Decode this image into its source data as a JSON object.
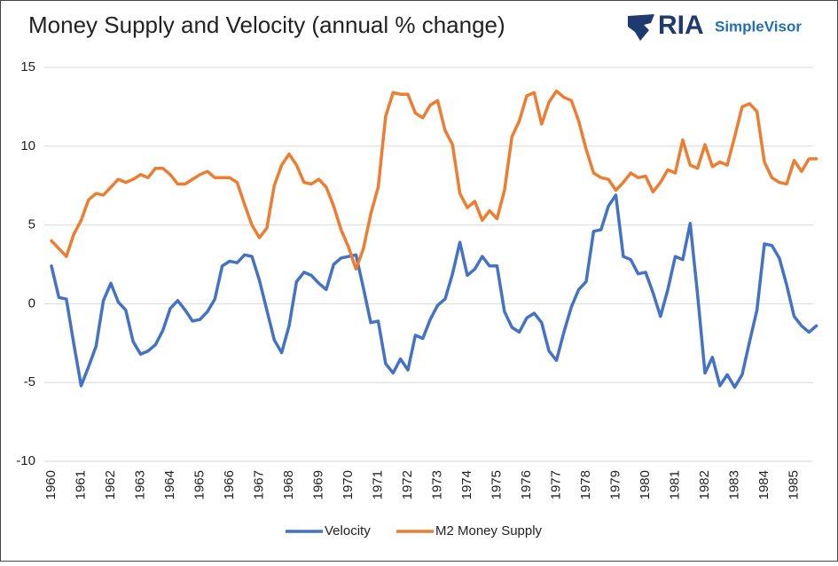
{
  "brand": {
    "name": "RIA",
    "product": "SimpleVisor"
  },
  "chart_data": {
    "type": "line",
    "title": "Money Supply and Velocity (annual % change)",
    "categories": [
      "1960",
      null,
      null,
      null,
      "1961",
      null,
      null,
      null,
      "1962",
      null,
      null,
      null,
      "1963",
      null,
      null,
      null,
      "1964",
      null,
      null,
      null,
      "1965",
      null,
      null,
      null,
      "1966",
      null,
      null,
      null,
      "1967",
      null,
      null,
      null,
      "1968",
      null,
      null,
      null,
      "1969",
      null,
      null,
      null,
      "1970",
      null,
      null,
      null,
      "1971",
      null,
      null,
      null,
      "1972",
      null,
      null,
      null,
      "1973",
      null,
      null,
      null,
      "1974",
      null,
      null,
      null,
      "1975",
      null,
      null,
      null,
      "1976",
      null,
      null,
      null,
      "1977",
      null,
      null,
      null,
      "1978",
      null,
      null,
      null,
      "1979",
      null,
      null,
      null,
      "1980",
      null,
      null,
      null,
      "1981",
      null,
      null,
      null,
      "1982",
      null,
      null,
      null,
      "1983",
      null,
      null,
      null,
      "1984",
      null,
      null,
      null,
      "1985",
      null,
      null,
      null
    ],
    "series": [
      {
        "name": "Velocity",
        "color": "#4472c4",
        "values": [
          2.4,
          0.4,
          0.3,
          -2.5,
          -5.2,
          -4.0,
          -2.7,
          0.2,
          1.3,
          0.1,
          -0.4,
          -2.4,
          -3.2,
          -3.0,
          -2.6,
          -1.7,
          -0.3,
          0.2,
          -0.4,
          -1.1,
          -1.0,
          -0.5,
          0.3,
          2.4,
          2.7,
          2.6,
          3.1,
          3.0,
          1.5,
          -0.4,
          -2.3,
          -3.1,
          -1.4,
          1.4,
          2.0,
          1.8,
          1.3,
          0.9,
          2.5,
          2.9,
          3.0,
          3.1,
          1.0,
          -1.2,
          -1.1,
          -3.8,
          -4.4,
          -3.5,
          -4.2,
          -2.0,
          -2.2,
          -1.0,
          -0.1,
          0.3,
          1.9,
          3.9,
          1.8,
          2.2,
          3.0,
          2.4,
          2.4,
          -0.5,
          -1.5,
          -1.8,
          -0.9,
          -0.6,
          -1.2,
          -3.0,
          -3.6,
          -1.8,
          -0.2,
          0.9,
          1.4,
          4.6,
          4.7,
          6.2,
          6.9,
          3.0,
          2.8,
          1.9,
          2.0,
          0.7,
          -0.8,
          0.9,
          3.0,
          2.8,
          5.1,
          0.6,
          -4.4,
          -3.4,
          -5.2,
          -4.5,
          -5.3,
          -4.5,
          -2.4,
          -0.4,
          3.8,
          3.7,
          2.9,
          1.2,
          -0.8,
          -1.4,
          -1.8,
          -1.4
        ]
      },
      {
        "name": "M2 Money Supply",
        "color": "#ed7d31",
        "values": [
          4.0,
          3.5,
          3.0,
          4.4,
          5.3,
          6.6,
          7.0,
          6.9,
          7.4,
          7.9,
          7.7,
          7.9,
          8.2,
          8.0,
          8.6,
          8.6,
          8.2,
          7.6,
          7.6,
          7.9,
          8.2,
          8.4,
          8.0,
          8.0,
          8.0,
          7.7,
          6.3,
          5.0,
          4.2,
          4.8,
          7.5,
          8.8,
          9.5,
          8.8,
          7.7,
          7.6,
          7.9,
          7.4,
          6.2,
          4.7,
          3.6,
          2.2,
          3.5,
          5.7,
          7.4,
          11.9,
          13.4,
          13.3,
          13.3,
          12.1,
          11.8,
          12.6,
          12.9,
          11.0,
          10.1,
          7.0,
          6.1,
          6.5,
          5.3,
          5.9,
          5.4,
          7.2,
          10.6,
          11.6,
          13.2,
          13.4,
          11.4,
          12.8,
          13.5,
          13.1,
          12.9,
          11.6,
          9.8,
          8.3,
          8.0,
          7.9,
          7.2,
          7.7,
          8.3,
          8.0,
          8.1,
          7.1,
          7.7,
          8.5,
          8.3,
          10.4,
          8.8,
          8.6,
          10.1,
          8.7,
          9.0,
          8.8,
          10.6,
          12.5,
          12.7,
          12.2,
          9.0,
          8.0,
          7.7,
          7.6,
          9.1,
          8.4,
          9.2,
          9.2
        ]
      }
    ],
    "ylim": [
      -10,
      15
    ],
    "yticks": [
      -10,
      -5,
      0,
      5,
      10,
      15
    ],
    "grid": true,
    "legend": "bottom"
  }
}
